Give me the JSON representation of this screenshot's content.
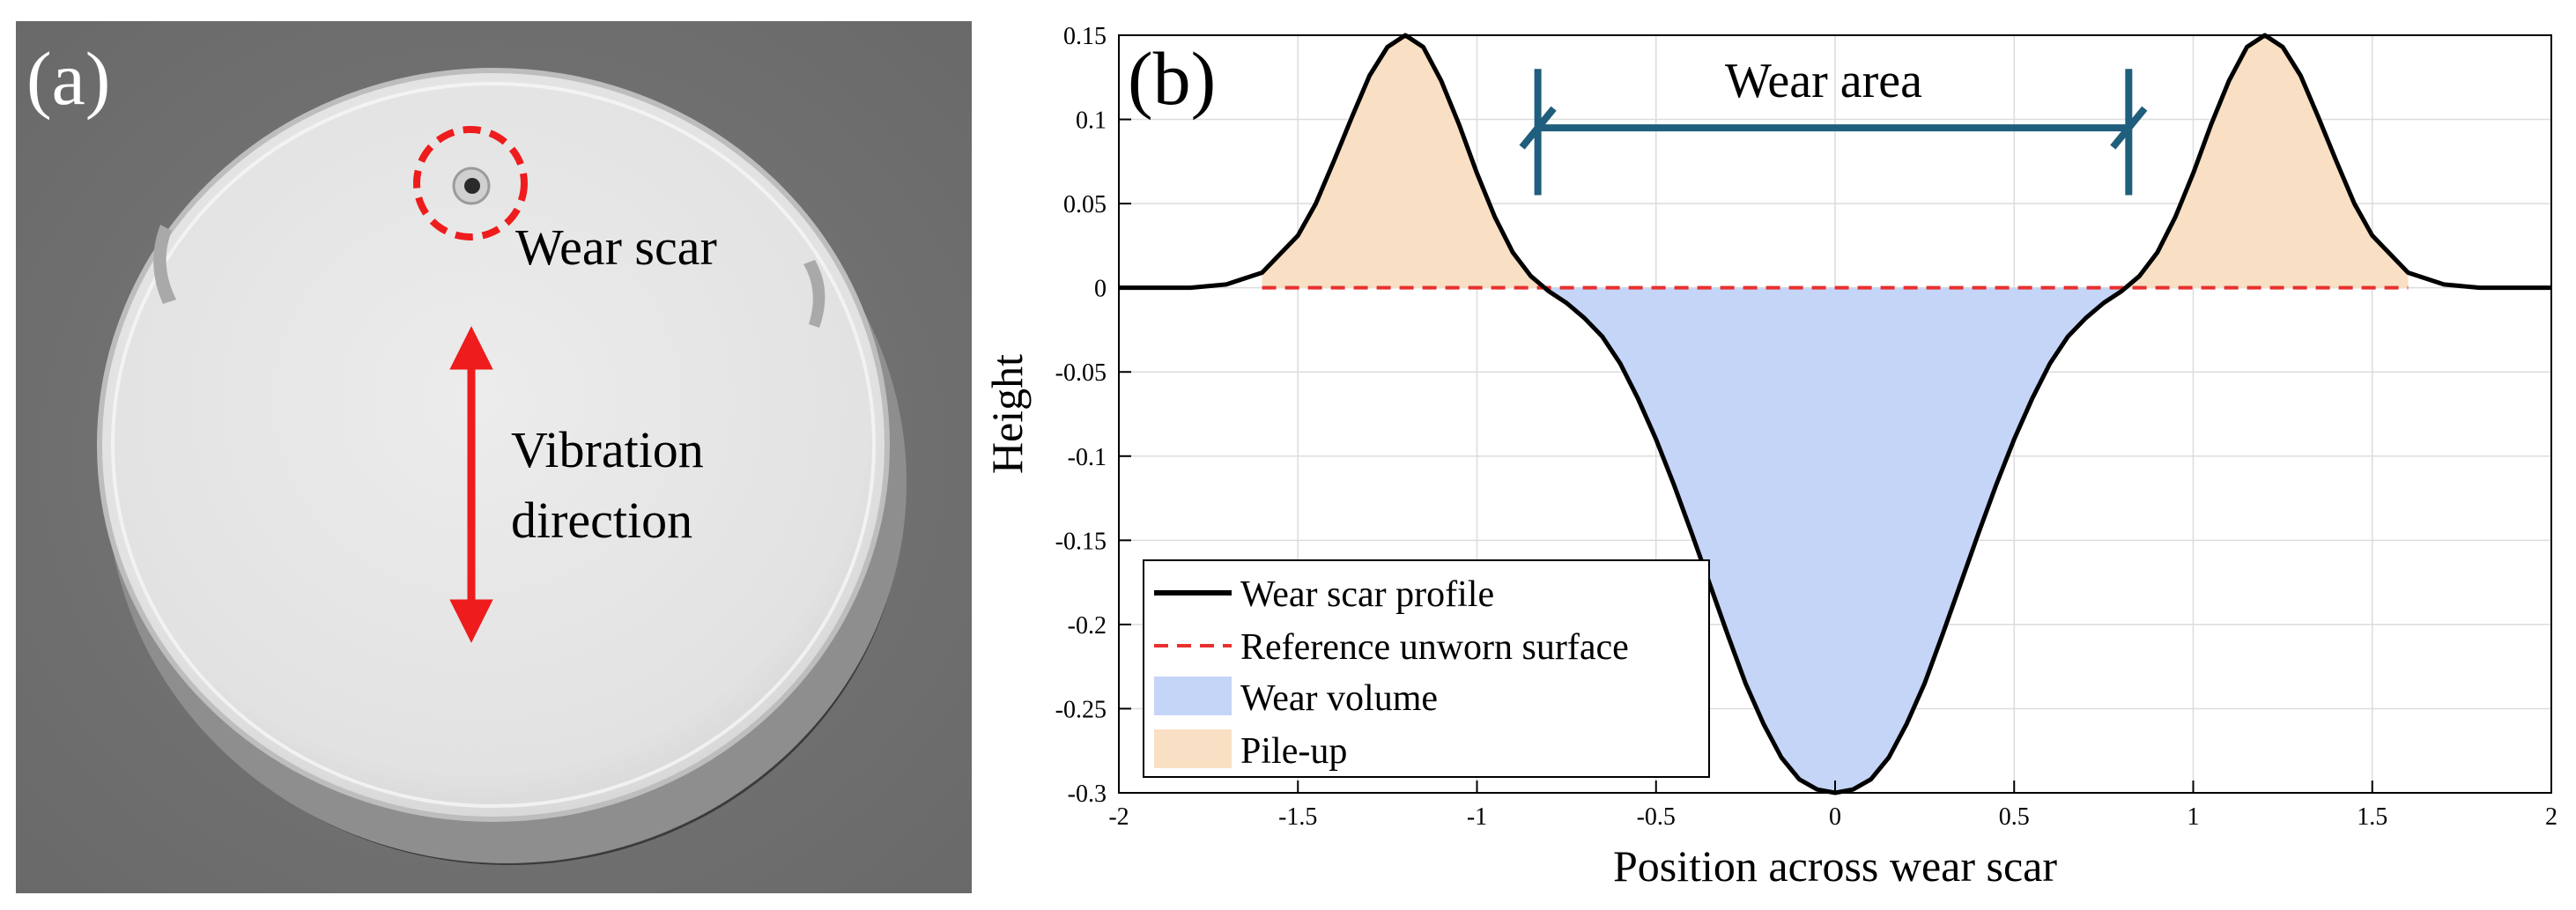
{
  "panel_a": {
    "label": "(a)",
    "annotations": {
      "wear_scar": "Wear scar",
      "vibration_line1": "Vibration",
      "vibration_line2": "direction"
    },
    "colors": {
      "background": "#6f6f6f",
      "disc": "#e3e3e3",
      "annotation": "#ee1c1c"
    }
  },
  "panel_b": {
    "label": "(b)",
    "wear_area_label": "Wear area",
    "colors": {
      "profile": "#000000",
      "reference": "#e8302e",
      "wear_volume": "#c4d5f8",
      "pile_up": "#f9dfc3",
      "bracket": "#1f5e7c",
      "grid": "#dcdcdc"
    }
  },
  "chart_data": {
    "type": "line",
    "title": "",
    "xlabel": "Position across wear scar",
    "ylabel": "Height",
    "xlim": [
      -2,
      2
    ],
    "ylim": [
      -0.3,
      0.15
    ],
    "grid": true,
    "xticks": [
      -2,
      -1.5,
      -1,
      -0.5,
      0,
      0.5,
      1,
      1.5,
      2
    ],
    "xtick_labels": [
      "-2",
      "-1.5",
      "-1",
      "-0.5",
      "0",
      "0.5",
      "1",
      "1.5",
      "2"
    ],
    "yticks": [
      0.15,
      0.1,
      0.05,
      0,
      -0.05,
      -0.1,
      -0.15,
      -0.2,
      -0.25,
      -0.3
    ],
    "ytick_labels": [
      "0.15",
      "0.1",
      "0.05",
      "0",
      "-0.05",
      "-0.1",
      "-0.15",
      "-0.2",
      "-0.25",
      "-0.3"
    ],
    "series": [
      {
        "name": "Wear scar profile",
        "style": "solid",
        "x": [
          -2,
          -1.9,
          -1.8,
          -1.7,
          -1.6,
          -1.5,
          -1.45,
          -1.4,
          -1.35,
          -1.3,
          -1.25,
          -1.2,
          -1.15,
          -1.1,
          -1.05,
          -1.0,
          -0.95,
          -0.9,
          -0.85,
          -0.8,
          -0.75,
          -0.7,
          -0.65,
          -0.6,
          -0.55,
          -0.5,
          -0.45,
          -0.4,
          -0.35,
          -0.3,
          -0.25,
          -0.2,
          -0.15,
          -0.1,
          -0.05,
          0,
          0.05,
          0.1,
          0.15,
          0.2,
          0.25,
          0.3,
          0.35,
          0.4,
          0.45,
          0.5,
          0.55,
          0.6,
          0.65,
          0.7,
          0.75,
          0.8,
          0.85,
          0.9,
          0.95,
          1.0,
          1.05,
          1.1,
          1.15,
          1.2,
          1.25,
          1.3,
          1.35,
          1.4,
          1.45,
          1.5,
          1.6,
          1.7,
          1.8,
          1.9,
          2
        ],
        "y": [
          0,
          0,
          0,
          0.002,
          0.009,
          0.031,
          0.05,
          0.075,
          0.101,
          0.126,
          0.143,
          0.15,
          0.143,
          0.123,
          0.097,
          0.068,
          0.042,
          0.021,
          0.007,
          -0.002,
          -0.009,
          -0.018,
          -0.029,
          -0.045,
          -0.066,
          -0.09,
          -0.117,
          -0.146,
          -0.176,
          -0.206,
          -0.235,
          -0.259,
          -0.279,
          -0.292,
          -0.298,
          -0.3,
          -0.298,
          -0.292,
          -0.279,
          -0.259,
          -0.235,
          -0.206,
          -0.176,
          -0.146,
          -0.117,
          -0.09,
          -0.066,
          -0.045,
          -0.029,
          -0.018,
          -0.009,
          -0.002,
          0.007,
          0.021,
          0.042,
          0.068,
          0.097,
          0.123,
          0.143,
          0.15,
          0.143,
          0.126,
          0.101,
          0.075,
          0.05,
          0.031,
          0.009,
          0.002,
          0,
          0,
          0
        ]
      },
      {
        "name": "Reference unworn surface",
        "style": "dashed",
        "x": [
          -1.6,
          1.6
        ],
        "y": [
          0,
          0
        ]
      }
    ],
    "regions": [
      {
        "name": "Wear volume",
        "kind": "below_reference",
        "x_range": [
          -0.82,
          0.82
        ]
      },
      {
        "name": "Pile-up",
        "kind": "above_reference",
        "x_range": [
          -1.6,
          -0.82
        ]
      },
      {
        "name": "Pile-up",
        "kind": "above_reference",
        "x_range": [
          0.82,
          1.6
        ]
      }
    ],
    "wear_area": {
      "label": "Wear area",
      "x_from": -0.83,
      "x_to": 0.82,
      "y": 0.095
    },
    "legend": {
      "position": "bottom-left",
      "entries": [
        "Wear scar profile",
        "Reference unworn surface",
        "Wear volume",
        "Pile-up"
      ]
    }
  }
}
